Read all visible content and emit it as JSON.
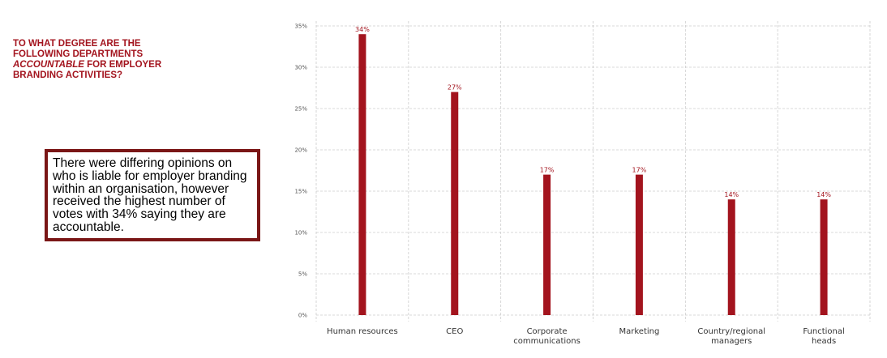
{
  "question": {
    "line1": "TO WHAT DEGREE ARE THE",
    "line2": "FOLLOWING DEPARTMENTS",
    "line3_em": "ACCOUNTABLE",
    "line3_rest": " FOR EMPLOYER",
    "line4": "BRANDING ACTIVITIES?"
  },
  "note": {
    "text": "There were differing opinions on who is liable for employer branding within an organisation, however received the highest number of votes with 34% saying they are accountable."
  },
  "colors": {
    "bar": "#a3141e",
    "grid": "#cccccc",
    "title": "#a3141e"
  },
  "chart_data": {
    "type": "bar",
    "categories": [
      [
        "Human resources"
      ],
      [
        "CEO"
      ],
      [
        "Corporate",
        "communications"
      ],
      [
        "Marketing"
      ],
      [
        "Country/regional",
        "managers"
      ],
      [
        "Functional",
        "heads"
      ]
    ],
    "values": [
      34,
      27,
      17,
      17,
      14,
      14
    ],
    "data_labels": [
      "34%",
      "27%",
      "17%",
      "17%",
      "14%",
      "14%"
    ],
    "yticks": [
      0,
      5,
      10,
      15,
      20,
      25,
      30,
      35
    ],
    "ytick_labels": [
      "0%",
      "5%",
      "10%",
      "15%",
      "20%",
      "25%",
      "30%",
      "35%"
    ],
    "ylim": [
      0,
      35
    ],
    "grid": true,
    "title": "",
    "xlabel": "",
    "ylabel": ""
  }
}
